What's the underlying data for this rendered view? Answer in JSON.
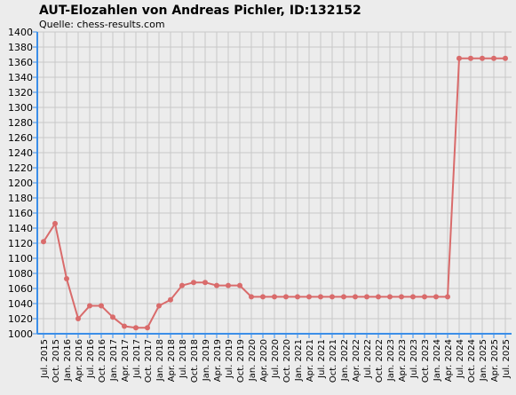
{
  "chart_data": {
    "type": "line",
    "title": "AUT-Elozahlen von Andreas Pichler, ID:132152",
    "subtitle": "Quelle: chess-results.com",
    "categories": [
      "Jul. 2015",
      "Oct. 2015",
      "Jan. 2016",
      "Apr. 2016",
      "Jul. 2016",
      "Oct. 2016",
      "Jan. 2017",
      "Apr. 2017",
      "Jul. 2017",
      "Oct. 2017",
      "Jan. 2018",
      "Apr. 2018",
      "Jul. 2018",
      "Oct. 2018",
      "Jan. 2019",
      "Apr. 2019",
      "Jul. 2019",
      "Oct. 2019",
      "Jan. 2020",
      "Apr. 2020",
      "Jul. 2020",
      "Oct. 2020",
      "Jan. 2021",
      "Apr. 2021",
      "Jul. 2021",
      "Oct. 2021",
      "Jan. 2022",
      "Apr. 2022",
      "Jul. 2022",
      "Oct. 2022",
      "Jan. 2023",
      "Apr. 2023",
      "Jul. 2023",
      "Oct. 2023",
      "Jan. 2024",
      "Apr. 2024",
      "Jul. 2024",
      "Oct. 2024",
      "Jan. 2025",
      "Apr. 2025",
      "Jul. 2025"
    ],
    "values": [
      1122,
      1146,
      1073,
      1020,
      1037,
      1037,
      1022,
      1010,
      1008,
      1008,
      1037,
      1045,
      1064,
      1068,
      1068,
      1064,
      1064,
      1064,
      1049,
      1049,
      1049,
      1049,
      1049,
      1049,
      1049,
      1049,
      1049,
      1049,
      1049,
      1049,
      1049,
      1049,
      1049,
      1049,
      1049,
      1049,
      1365,
      1365,
      1365,
      1365,
      1365
    ],
    "color": "#d96b6b",
    "ylim": [
      1000,
      1400
    ],
    "yticks": [
      1000,
      1020,
      1040,
      1060,
      1080,
      1100,
      1120,
      1140,
      1160,
      1180,
      1200,
      1220,
      1240,
      1260,
      1280,
      1300,
      1320,
      1340,
      1360,
      1380,
      1400
    ],
    "grid": true
  }
}
